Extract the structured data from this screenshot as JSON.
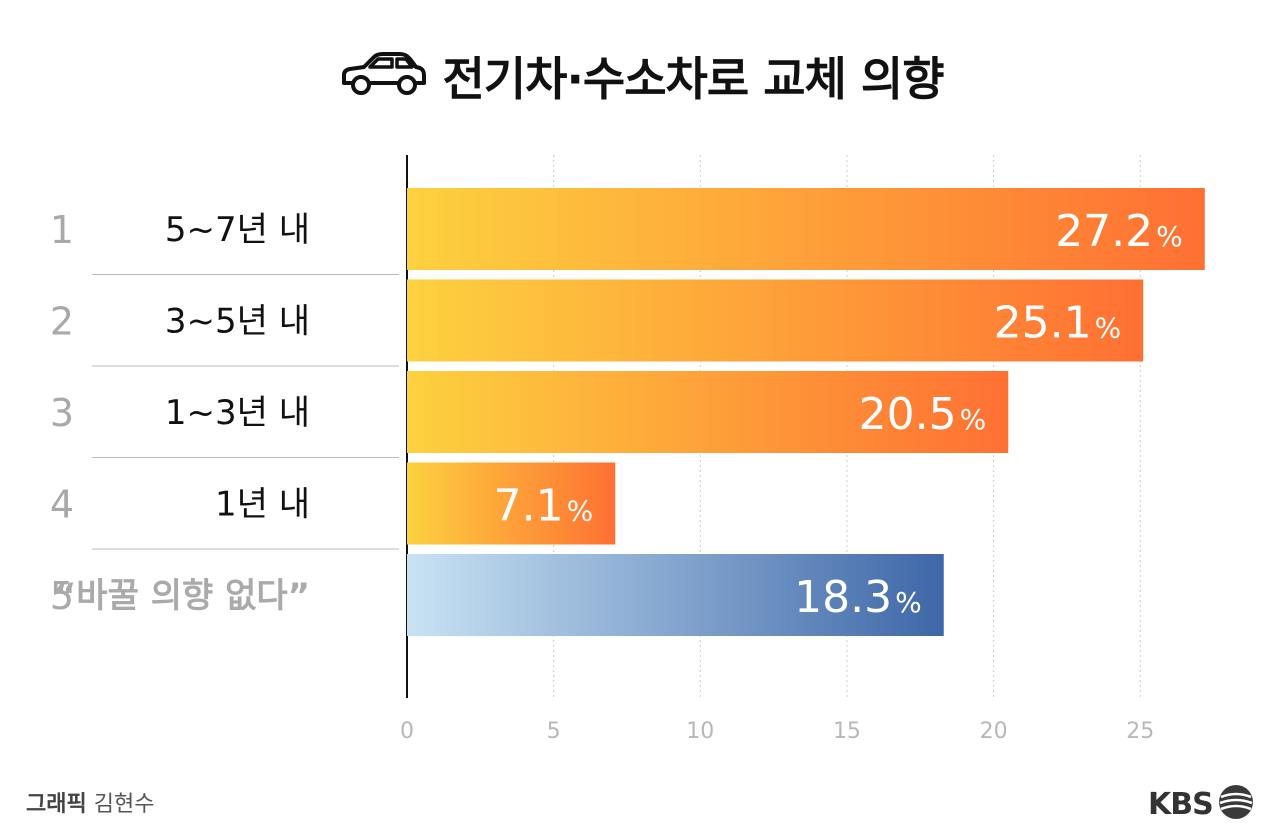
{
  "title": "전기차·수소차로 교체 의향",
  "title_icon": "car-icon",
  "credit": {
    "label": "그래픽",
    "name": "김현수"
  },
  "logo": {
    "text": "KBS",
    "icon": "kbs-globe-icon"
  },
  "colors": {
    "bar_gradient_start": "#FDD13F",
    "bar_gradient_end": "#FF7033",
    "blue_gradient_start": "#C9E3F4",
    "blue_gradient_end": "#3E67A8",
    "outside_label": "#E8501A",
    "rank_gray": "#A9A9A9",
    "category_text": "#111111",
    "muted_text": "#AAAAAA"
  },
  "chart_data": {
    "type": "bar",
    "orientation": "horizontal",
    "title": "전기차·수소차로 교체 의향",
    "ranks": [
      "1",
      "2",
      "3",
      "4",
      "5"
    ],
    "categories": [
      "5~7년 내",
      "3~5년 내",
      "1~3년 내",
      "1년 내",
      "“바꿀 의향 없다”"
    ],
    "values": [
      27.2,
      25.1,
      20.5,
      7.1,
      18.3
    ],
    "value_suffix": "%",
    "xlim": [
      0,
      27.5
    ],
    "xticks": [
      0,
      5,
      10,
      15,
      20,
      25
    ],
    "grid": true,
    "legend": "none"
  }
}
